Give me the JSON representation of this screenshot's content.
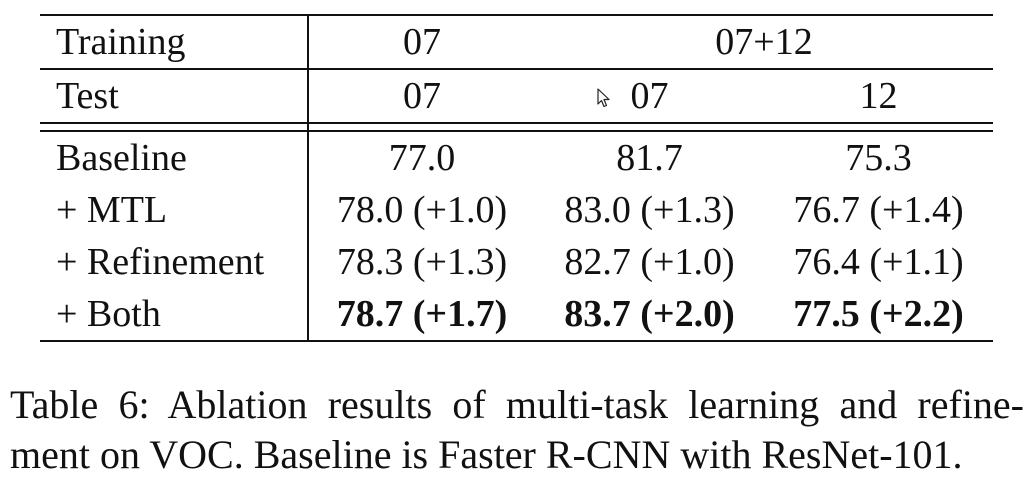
{
  "table": {
    "header1": {
      "label": "Training",
      "c1": "07",
      "c23": "07+12"
    },
    "header2": {
      "label": "Test",
      "c1": "07",
      "c2": "07",
      "c3": "12"
    },
    "rows": [
      {
        "label": "Baseline",
        "c1": "77.0",
        "c2": "81.7",
        "c3": "75.3",
        "bold": false
      },
      {
        "label": "+ MTL",
        "c1": "78.0 (+1.0)",
        "c2": "83.0 (+1.3)",
        "c3": "76.7 (+1.4)",
        "bold": false
      },
      {
        "label": "+ Refinement",
        "c1": "78.3 (+1.3)",
        "c2": "82.7 (+1.0)",
        "c3": "76.4 (+1.1)",
        "bold": false
      },
      {
        "label": "+ Both",
        "c1": "78.7 (+1.7)",
        "c2": "83.7 (+2.0)",
        "c3": "77.5 (+2.2)",
        "bold": true
      }
    ]
  },
  "caption": {
    "line1": "Table 6: Ablation results of multi-task learning and refine-",
    "line2": "ment on VOC. Baseline is Faster R-CNN with ResNet-101."
  },
  "icons": {
    "cursor": "mouse-pointer-icon"
  }
}
